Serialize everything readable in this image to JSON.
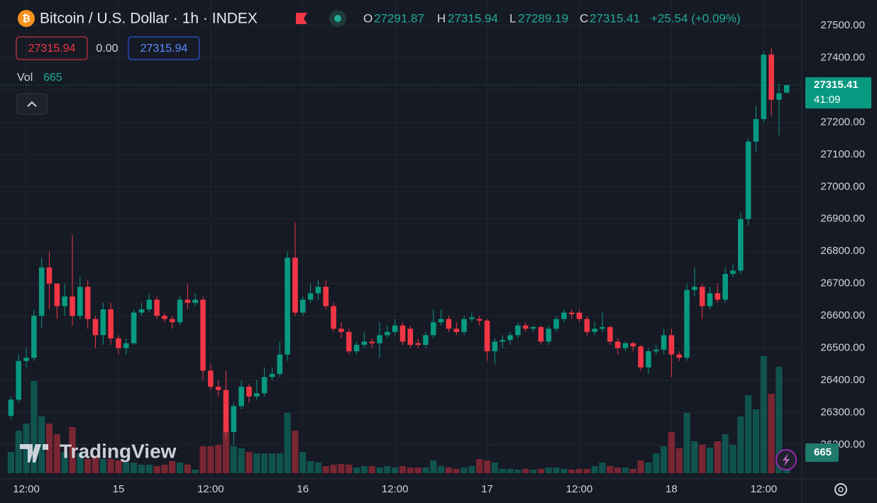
{
  "header": {
    "title": "Bitcoin / U.S. Dollar · 1h · INDEX",
    "o_label": "O",
    "h_label": "H",
    "l_label": "L",
    "c_label": "C",
    "change": "+25.54 (+0.09%)",
    "bid": "27315.94",
    "spread": "0.00",
    "ask": "27315.94",
    "vol_label": "Vol",
    "countdown": "41:09",
    "watermark": "TradingView"
  },
  "chart_data": {
    "type": "candlestick",
    "up_color": "#089981",
    "down_color": "#f23645",
    "grid": true,
    "xlim": [
      -0.5,
      102.5
    ],
    "xticks": [
      {
        "value": 2,
        "label": "12:00"
      },
      {
        "value": 14,
        "label": "15"
      },
      {
        "value": 26,
        "label": "12:00"
      },
      {
        "value": 38,
        "label": "16"
      },
      {
        "value": 50,
        "label": "12:00"
      },
      {
        "value": 62,
        "label": "17"
      },
      {
        "value": 74,
        "label": "12:00"
      },
      {
        "value": 86,
        "label": "18"
      },
      {
        "value": 98,
        "label": "12:00"
      }
    ],
    "ylim": [
      26094.4,
      27579.2
    ],
    "yticks": [
      {
        "value": 26200,
        "label": "26200.00"
      },
      {
        "value": 26300,
        "label": "26300.00"
      },
      {
        "value": 26400,
        "label": "26400.00"
      },
      {
        "value": 26500,
        "label": "26500.00"
      },
      {
        "value": 26600,
        "label": "26600.00"
      },
      {
        "value": 26700,
        "label": "26700.00"
      },
      {
        "value": 26800,
        "label": "26800.00"
      },
      {
        "value": 26900,
        "label": "26900.00"
      },
      {
        "value": 27000,
        "label": "27000.00"
      },
      {
        "value": 27100,
        "label": "27100.00"
      },
      {
        "value": 27200,
        "label": "27200.00"
      },
      {
        "value": 27300,
        "label": "27300.00"
      },
      {
        "value": 27400,
        "label": "27400.00"
      },
      {
        "value": 27500,
        "label": "27500.00"
      }
    ],
    "open": [
      26290,
      26340,
      26460,
      26470,
      26600,
      26750,
      26700,
      26630,
      26660,
      26600,
      26690,
      26590,
      26540,
      26620,
      26530,
      26500,
      26515,
      26610,
      26620,
      26650,
      26600,
      26590,
      26580,
      26650,
      26640,
      26650,
      26430,
      26380,
      26370,
      26240,
      26320,
      26380,
      26350,
      26360,
      26410,
      26420,
      26480,
      26780,
      26610,
      26650,
      26670,
      26690,
      26630,
      26560,
      26550,
      26490,
      26510,
      26520,
      26515,
      26540,
      26550,
      26570,
      26560,
      26515,
      26510,
      26540,
      26580,
      26590,
      26560,
      26550,
      26590,
      26590,
      26585,
      26490,
      26520,
      26525,
      26540,
      26570,
      26560,
      26565,
      26520,
      26560,
      26590,
      26610,
      26610,
      26590,
      26550,
      26560,
      26565,
      26520,
      26500,
      26515,
      26505,
      26440,
      26490,
      26495,
      26540,
      26480,
      26470,
      26680,
      26690,
      26630,
      26670,
      26650,
      26730,
      26740,
      26900,
      27140,
      27210,
      27410,
      27270,
      27291.87
    ],
    "high": [
      26350,
      26480,
      26500,
      26620,
      26780,
      26800,
      26700,
      26700,
      26850,
      26720,
      26710,
      26600,
      26640,
      26640,
      26540,
      26530,
      26620,
      26640,
      26670,
      26660,
      26610,
      26600,
      26660,
      26700,
      26670,
      26660,
      26450,
      26400,
      26430,
      26330,
      26400,
      26390,
      26400,
      26440,
      26440,
      26520,
      26800,
      26890,
      26660,
      26700,
      26710,
      26710,
      26640,
      26580,
      26560,
      26520,
      26550,
      26530,
      26580,
      26570,
      26590,
      26580,
      26570,
      26530,
      26550,
      26620,
      26620,
      26600,
      26580,
      26600,
      26610,
      26600,
      26590,
      26530,
      26540,
      26550,
      26580,
      26580,
      26570,
      26570,
      26570,
      26600,
      26620,
      26620,
      26620,
      26600,
      26580,
      26610,
      26570,
      26530,
      26520,
      26520,
      26510,
      26500,
      26510,
      26560,
      26560,
      26490,
      26700,
      26750,
      26700,
      26690,
      26700,
      26750,
      26760,
      26920,
      27150,
      27250,
      27420,
      27430,
      27320,
      27315.94
    ],
    "low": [
      26280,
      26330,
      26440,
      26460,
      26560,
      26620,
      26590,
      26600,
      26570,
      26590,
      26560,
      26500,
      26510,
      26510,
      26480,
      26480,
      26510,
      26600,
      26610,
      26590,
      26580,
      26560,
      26570,
      26620,
      26630,
      26400,
      26370,
      26350,
      26220,
      26200,
      26310,
      26330,
      26340,
      26350,
      26400,
      26410,
      26460,
      26600,
      26600,
      26640,
      26650,
      26620,
      26550,
      26530,
      26480,
      26480,
      26500,
      26500,
      26470,
      26530,
      26540,
      26510,
      26500,
      26500,
      26500,
      26530,
      26570,
      26550,
      26540,
      26540,
      26580,
      26570,
      26460,
      26450,
      26500,
      26510,
      26530,
      26550,
      26550,
      26510,
      26510,
      26550,
      26580,
      26590,
      26580,
      26540,
      26540,
      26550,
      26510,
      26480,
      26490,
      26490,
      26430,
      26420,
      26480,
      26480,
      26410,
      26460,
      26460,
      26660,
      26590,
      26620,
      26640,
      26640,
      26720,
      26730,
      26880,
      27110,
      27200,
      27220,
      27160,
      27289.19
    ],
    "close": [
      26340,
      26460,
      26470,
      26600,
      26750,
      26700,
      26630,
      26660,
      26600,
      26690,
      26590,
      26540,
      26620,
      26530,
      26500,
      26515,
      26610,
      26620,
      26650,
      26600,
      26590,
      26580,
      26650,
      26640,
      26650,
      26430,
      26380,
      26370,
      26240,
      26320,
      26380,
      26350,
      26360,
      26410,
      26420,
      26480,
      26780,
      26610,
      26650,
      26670,
      26690,
      26630,
      26560,
      26550,
      26490,
      26510,
      26520,
      26515,
      26540,
      26550,
      26570,
      26520,
      26510,
      26510,
      26540,
      26580,
      26590,
      26560,
      26550,
      26590,
      26595,
      26585,
      26490,
      26520,
      26525,
      26540,
      26570,
      26560,
      26565,
      26520,
      26560,
      26590,
      26610,
      26605,
      26590,
      26550,
      26560,
      26565,
      26520,
      26500,
      26515,
      26505,
      26440,
      26490,
      26495,
      26540,
      26480,
      26470,
      26680,
      26690,
      26630,
      26670,
      26650,
      26730,
      26740,
      26900,
      27140,
      27210,
      27410,
      27270,
      27290,
      27315.41
    ],
    "volume": [
      690,
      1380,
      1610,
      2990,
      1840,
      1610,
      1265,
      690,
      1495,
      644,
      460,
      575,
      460,
      460,
      414,
      345,
      345,
      276,
      276,
      230,
      276,
      391,
      345,
      276,
      115,
      874,
      874,
      920,
      1380,
      874,
      805,
      690,
      644,
      644,
      644,
      644,
      1955,
      1380,
      690,
      391,
      345,
      230,
      276,
      299,
      276,
      184,
      230,
      230,
      184,
      230,
      184,
      230,
      184,
      184,
      184,
      414,
      230,
      184,
      138,
      184,
      230,
      460,
      414,
      345,
      138,
      138,
      115,
      138,
      115,
      138,
      184,
      184,
      138,
      115,
      138,
      138,
      230,
      345,
      230,
      184,
      184,
      138,
      414,
      345,
      644,
      874,
      1334,
      805,
      1955,
      1035,
      920,
      828,
      1035,
      1265,
      920,
      1840,
      2530,
      2070,
      3795,
      2576,
      3450,
      665
    ]
  }
}
